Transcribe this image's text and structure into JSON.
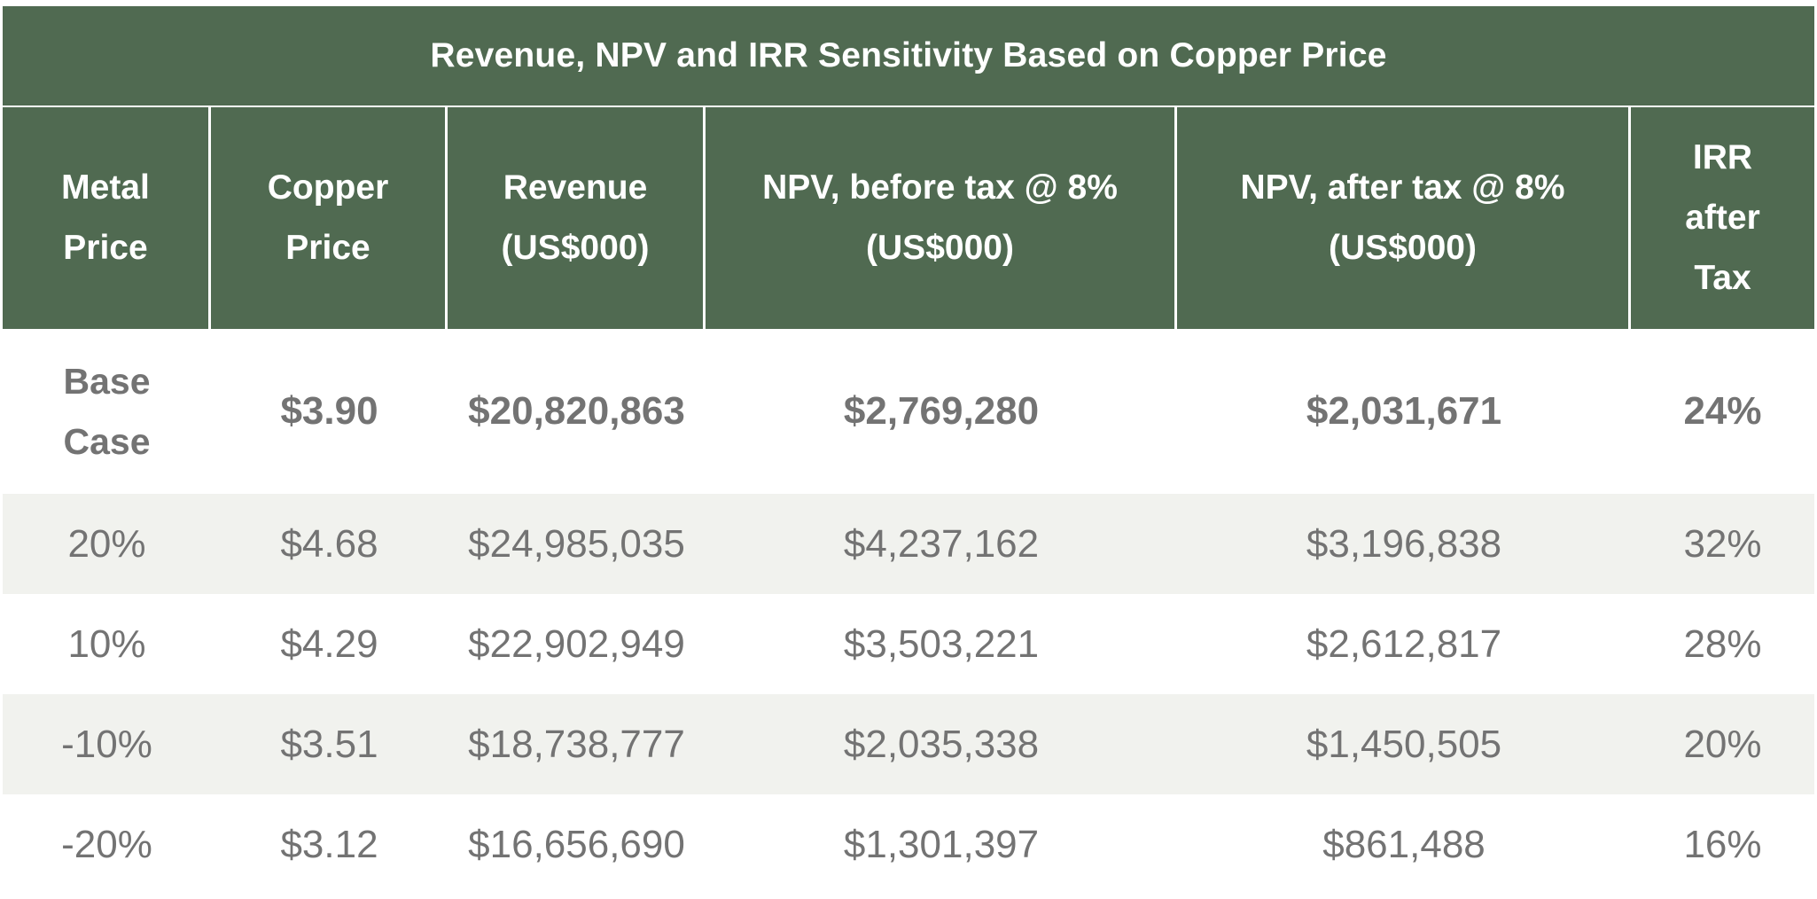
{
  "title": "Revenue, NPV and IRR Sensitivity Based on Copper Price",
  "colors": {
    "header_bg": "#506a51",
    "header_text": "#ffffff",
    "body_text": "#737373",
    "alt_row_bg": "#f1f2ee"
  },
  "headers": [
    "Metal\nPrice",
    "Copper\nPrice",
    "Revenue\n(US$000)",
    "NPV, before tax @ 8%\n(US$000)",
    "NPV, after tax @ 8%\n(US$000)",
    "IRR\nafter\nTax"
  ],
  "rows": [
    [
      "Base\nCase",
      "$3.90",
      "$20,820,863",
      "$2,769,280",
      "$2,031,671",
      "24%"
    ],
    [
      "20%",
      "$4.68",
      "$24,985,035",
      "$4,237,162",
      "$3,196,838",
      "32%"
    ],
    [
      "10%",
      "$4.29",
      "$22,902,949",
      "$3,503,221",
      "$2,612,817",
      "28%"
    ],
    [
      "-10%",
      "$3.51",
      "$18,738,777",
      "$2,035,338",
      "$1,450,505",
      "20%"
    ],
    [
      "-20%",
      "$3.12",
      "$16,656,690",
      "$1,301,397",
      "$861,488",
      "16%"
    ]
  ]
}
